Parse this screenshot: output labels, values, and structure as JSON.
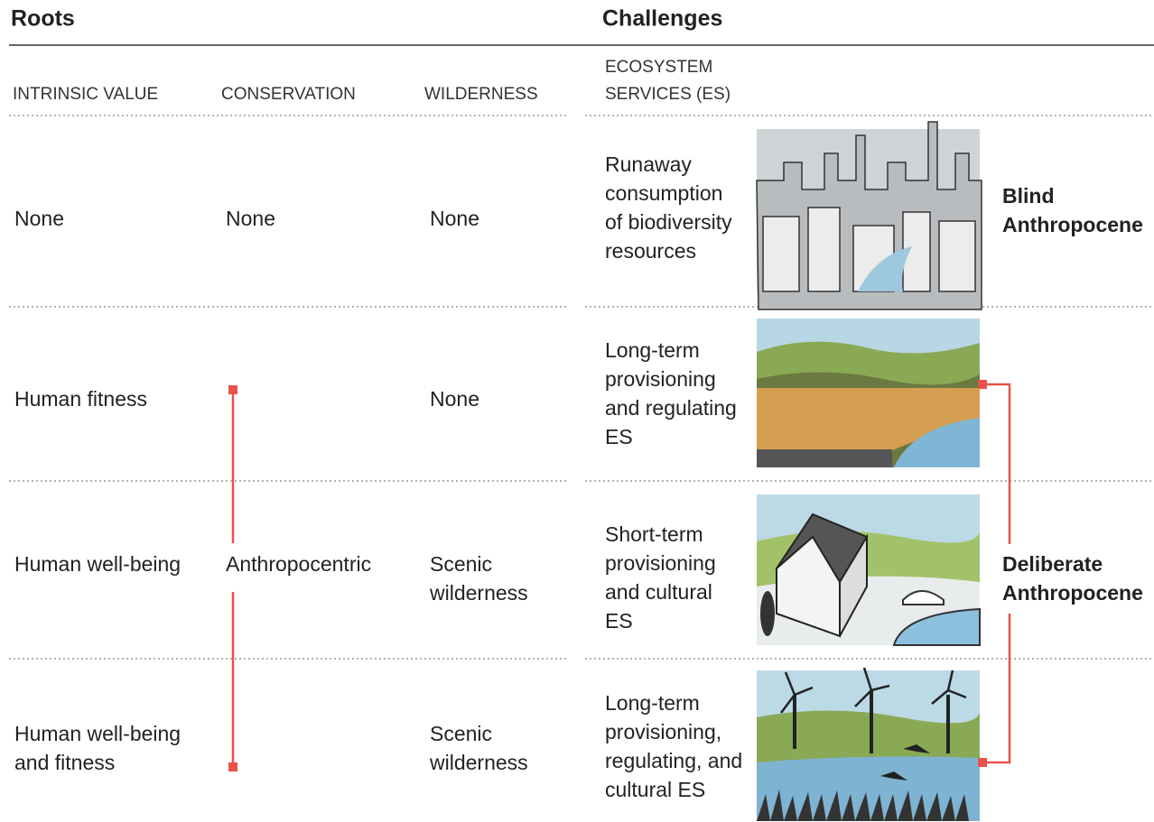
{
  "header": {
    "roots": "Roots",
    "challenges": "Challenges"
  },
  "columns": {
    "intrinsic_value": "INTRINSIC VALUE",
    "conservation": "CONSERVATION",
    "wilderness": "WILDERNESS",
    "ecosystem_services": [
      "ECOSYSTEM",
      "SERVICES (ES)"
    ]
  },
  "rows": [
    {
      "intrinsic_value": [
        "None"
      ],
      "conservation": [
        "None"
      ],
      "wilderness": [
        "None"
      ],
      "ecosystem_services": [
        "Runaway",
        "consumption",
        "of biodiversity",
        "resources"
      ]
    },
    {
      "intrinsic_value": [
        "Human fitness"
      ],
      "wilderness": [
        "None"
      ],
      "ecosystem_services": [
        "Long-term",
        "provisioning",
        "and regulating",
        "ES"
      ]
    },
    {
      "intrinsic_value": [
        "Human well-being"
      ],
      "wilderness": [
        "Scenic",
        "wilderness"
      ],
      "ecosystem_services": [
        "Short-term",
        "provisioning",
        "and cultural",
        "ES"
      ]
    },
    {
      "intrinsic_value": [
        "Human well-being",
        "and fitness"
      ],
      "wilderness": [
        "Scenic",
        "wilderness"
      ],
      "ecosystem_services": [
        "Long-term",
        "provisioning,",
        "regulating, and",
        "cultural ES"
      ]
    }
  ],
  "conservation_bracket_label": "Anthropocentric",
  "outcomes": [
    {
      "label": [
        "Blind",
        "Anthropocene"
      ]
    },
    {
      "label": [
        "Deliberate",
        "Anthropocene"
      ]
    }
  ]
}
